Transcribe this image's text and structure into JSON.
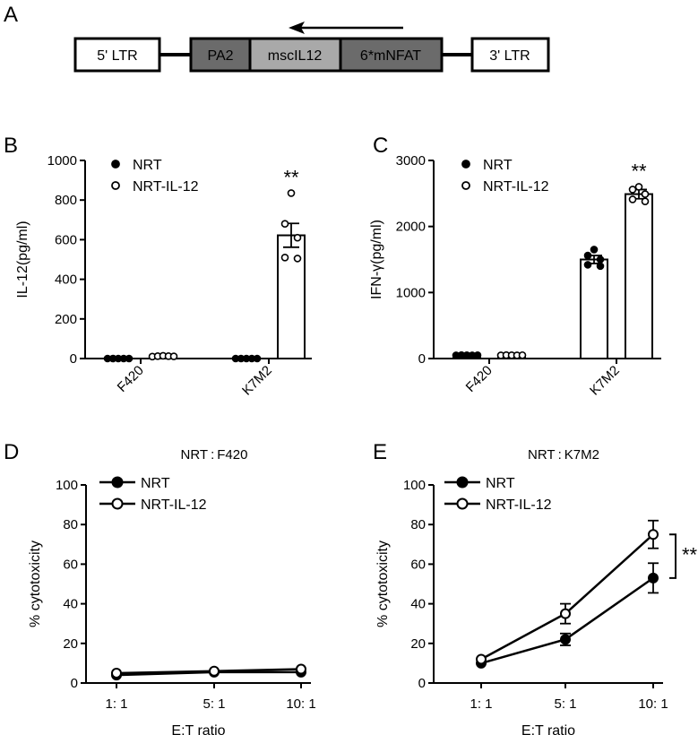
{
  "panel_labels": {
    "a": "A",
    "b": "B",
    "c": "C",
    "d": "D",
    "e": "E"
  },
  "construct": {
    "colors": {
      "dark": "#6b6b6b",
      "light": "#a9a9a9",
      "white": "#ffffff"
    },
    "segments": [
      {
        "label": "5' LTR"
      },
      {
        "label": "PA2"
      },
      {
        "label": "mscIL12"
      },
      {
        "label": "6*mNFAT"
      },
      {
        "label": "3' LTR"
      }
    ],
    "arrow_direction": "right-to-left"
  },
  "chart_data": [
    {
      "id": "B",
      "type": "bar",
      "ylabel": "IL-12(pg/ml)",
      "ylim": [
        0,
        1000
      ],
      "yticks": [
        0,
        200,
        400,
        600,
        800,
        1000
      ],
      "categories": [
        "F420",
        "K7M2"
      ],
      "legend": [
        {
          "name": "NRT",
          "marker": "filled-circle"
        },
        {
          "name": "NRT-IL-12",
          "marker": "open-circle"
        }
      ],
      "series": [
        {
          "name": "NRT",
          "values": [
            0,
            0
          ],
          "errors": [
            0,
            0
          ],
          "points": [
            [
              0,
              0,
              0,
              0,
              0
            ],
            [
              0,
              0,
              0,
              0,
              0
            ]
          ]
        },
        {
          "name": "NRT-IL-12",
          "values": [
            12,
            622
          ],
          "errors": [
            3,
            60
          ],
          "points": [
            [
              10,
              12,
              14,
              12,
              11
            ],
            [
              835,
              680,
              610,
              510,
              505
            ]
          ]
        }
      ],
      "annotations": [
        {
          "category": "K7M2",
          "series": "NRT-IL-12",
          "text": "**"
        }
      ]
    },
    {
      "id": "C",
      "type": "bar",
      "ylabel": "IFN-γ(pg/ml)",
      "ylim": [
        0,
        3000
      ],
      "yticks": [
        0,
        1000,
        2000,
        3000
      ],
      "categories": [
        "F420",
        "K7M2"
      ],
      "legend": [
        {
          "name": "NRT",
          "marker": "filled-circle"
        },
        {
          "name": "NRT-IL-12",
          "marker": "open-circle"
        }
      ],
      "series": [
        {
          "name": "NRT",
          "values": [
            50,
            1500
          ],
          "errors": [
            5,
            60
          ],
          "points": [
            [
              48,
              52,
              50,
              49,
              51
            ],
            [
              1650,
              1560,
              1500,
              1420,
              1400
            ]
          ]
        },
        {
          "name": "NRT-IL-12",
          "values": [
            50,
            2490
          ],
          "errors": [
            5,
            70
          ],
          "points": [
            [
              48,
              52,
              50,
              49,
              51
            ],
            [
              2600,
              2560,
              2490,
              2410,
              2380
            ]
          ]
        }
      ],
      "annotations": [
        {
          "category": "K7M2",
          "series": "NRT-IL-12",
          "text": "**"
        }
      ]
    },
    {
      "id": "D",
      "type": "line",
      "title": "NRT : F420",
      "xlabel": "E:T ratio",
      "ylabel": "% cytotoxicity",
      "ylim": [
        0,
        100
      ],
      "yticks": [
        0,
        20,
        40,
        60,
        80,
        100
      ],
      "categories": [
        "1: 1",
        "5: 1",
        "10: 1"
      ],
      "legend": [
        {
          "name": "NRT",
          "marker": "filled-circle"
        },
        {
          "name": "NRT-IL-12",
          "marker": "open-circle"
        }
      ],
      "series": [
        {
          "name": "NRT",
          "values": [
            4,
            5.5,
            5.5
          ],
          "errors": [
            0.5,
            0.5,
            0.5
          ]
        },
        {
          "name": "NRT-IL-12",
          "values": [
            5,
            6,
            7
          ],
          "errors": [
            0.5,
            0.5,
            0.5
          ]
        }
      ]
    },
    {
      "id": "E",
      "type": "line",
      "title": "NRT : K7M2",
      "xlabel": "E:T ratio",
      "ylabel": "% cytotoxicity",
      "ylim": [
        0,
        100
      ],
      "yticks": [
        0,
        20,
        40,
        60,
        80,
        100
      ],
      "categories": [
        "1: 1",
        "5: 1",
        "10: 1"
      ],
      "legend": [
        {
          "name": "NRT",
          "marker": "filled-circle"
        },
        {
          "name": "NRT-IL-12",
          "marker": "open-circle"
        }
      ],
      "series": [
        {
          "name": "NRT",
          "values": [
            10,
            22,
            53
          ],
          "errors": [
            1,
            3,
            7.5
          ]
        },
        {
          "name": "NRT-IL-12",
          "values": [
            12,
            35,
            75
          ],
          "errors": [
            1,
            5,
            7
          ]
        }
      ],
      "significance": {
        "text": "**",
        "from_series": "NRT",
        "to_series": "NRT-IL-12",
        "category": "10: 1"
      }
    }
  ]
}
